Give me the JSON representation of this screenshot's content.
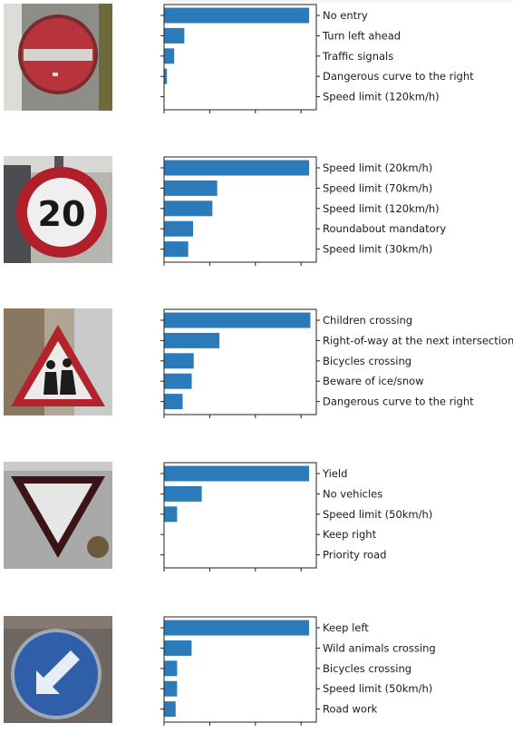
{
  "colors": {
    "bar": "#2b7bba",
    "axis": "#222222",
    "text": "#1a1a1a"
  },
  "chart_data": [
    {
      "type": "bar",
      "orientation": "horizontal",
      "image": "no-entry-sign",
      "categories": [
        "No entry",
        "Turn left ahead",
        "Traffic signals",
        "Dangerous curve to the right",
        "Speed limit (120km/h)"
      ],
      "values": [
        1.0,
        0.14,
        0.07,
        0.02,
        0.0
      ],
      "xlim": [
        0,
        1.05
      ]
    },
    {
      "type": "bar",
      "orientation": "horizontal",
      "image": "speed-limit-20-sign",
      "categories": [
        "Speed limit (20km/h)",
        "Speed limit (70km/h)",
        "Speed limit (120km/h)",
        "Roundabout mandatory",
        "Speed limit (30km/h)"
      ],
      "values": [
        0.6,
        0.22,
        0.2,
        0.12,
        0.1
      ],
      "xlim": [
        0,
        0.63
      ]
    },
    {
      "type": "bar",
      "orientation": "horizontal",
      "image": "children-crossing-sign",
      "categories": [
        "Children crossing",
        "Right-of-way at the next intersection",
        "Bicycles crossing",
        "Beware of ice/snow",
        "Dangerous curve to the right"
      ],
      "values": [
        0.37,
        0.14,
        0.075,
        0.07,
        0.047
      ],
      "xlim": [
        0,
        0.385
      ]
    },
    {
      "type": "bar",
      "orientation": "horizontal",
      "image": "yield-sign",
      "categories": [
        "Yield",
        "No vehicles",
        "Speed limit (50km/h)",
        "Keep right",
        "Priority road"
      ],
      "values": [
        1.0,
        0.26,
        0.09,
        0.0,
        0.0
      ],
      "xlim": [
        0,
        1.05
      ]
    },
    {
      "type": "bar",
      "orientation": "horizontal",
      "image": "keep-left-sign",
      "categories": [
        "Keep left",
        "Wild animals crossing",
        "Bicycles crossing",
        "Speed limit (50km/h)",
        "Road work"
      ],
      "values": [
        1.0,
        0.19,
        0.09,
        0.09,
        0.08
      ],
      "xlim": [
        0,
        1.05
      ]
    }
  ]
}
